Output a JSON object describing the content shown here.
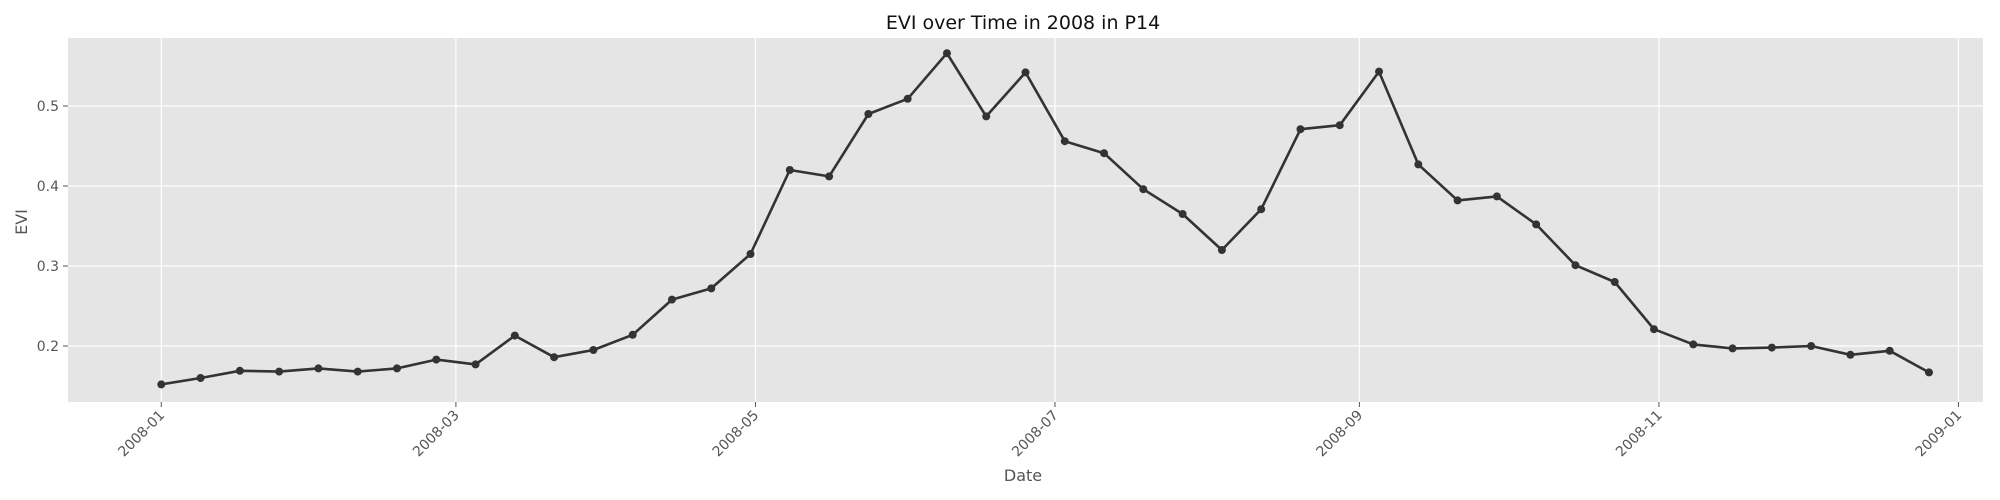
{
  "chart_data": {
    "type": "line",
    "title": "EVI over Time in 2008 in P14",
    "xlabel": "Date",
    "ylabel": "EVI",
    "xlim": [
      "2007-12-13",
      "2009-01-06"
    ],
    "ylim": [
      0.13,
      0.585
    ],
    "grid": true,
    "x_ticks": [
      "2008-01",
      "2008-03",
      "2008-05",
      "2008-07",
      "2008-09",
      "2008-11",
      "2009-01"
    ],
    "y_ticks": [
      "0.2",
      "0.3",
      "0.4",
      "0.5"
    ],
    "series": [
      {
        "color": "#333333",
        "x": [
          "2008-01-01",
          "2008-01-09",
          "2008-01-17",
          "2008-01-25",
          "2008-02-02",
          "2008-02-10",
          "2008-02-18",
          "2008-02-26",
          "2008-03-05",
          "2008-03-13",
          "2008-03-21",
          "2008-03-29",
          "2008-04-06",
          "2008-04-14",
          "2008-04-22",
          "2008-04-30",
          "2008-05-08",
          "2008-05-16",
          "2008-05-24",
          "2008-06-01",
          "2008-06-09",
          "2008-06-17",
          "2008-06-25",
          "2008-07-03",
          "2008-07-11",
          "2008-07-19",
          "2008-07-27",
          "2008-08-04",
          "2008-08-12",
          "2008-08-20",
          "2008-08-28",
          "2008-09-05",
          "2008-09-13",
          "2008-09-21",
          "2008-09-29",
          "2008-10-07",
          "2008-10-15",
          "2008-10-23",
          "2008-10-31",
          "2008-11-08",
          "2008-11-16",
          "2008-11-24",
          "2008-12-02",
          "2008-12-10",
          "2008-12-18",
          "2008-12-26"
        ],
        "y": [
          0.152,
          0.16,
          0.169,
          0.168,
          0.172,
          0.168,
          0.172,
          0.183,
          0.177,
          0.213,
          0.186,
          0.195,
          0.214,
          0.258,
          0.272,
          0.315,
          0.42,
          0.412,
          0.49,
          0.509,
          0.566,
          0.487,
          0.542,
          0.456,
          0.441,
          0.396,
          0.365,
          0.32,
          0.371,
          0.471,
          0.476,
          0.543,
          0.427,
          0.382,
          0.387,
          0.352,
          0.301,
          0.28,
          0.221,
          0.202,
          0.197,
          0.198,
          0.2,
          0.189,
          0.194,
          0.167
        ]
      }
    ]
  }
}
